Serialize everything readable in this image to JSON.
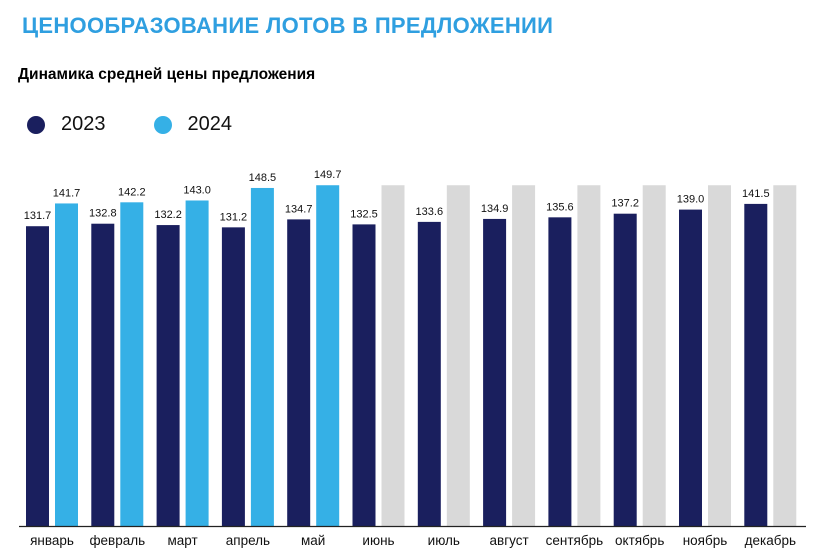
{
  "header": {
    "title": "ЦЕНООБРАЗОВАНИЕ ЛОТОВ В ПРЕДЛОЖЕНИИ"
  },
  "chart_data": {
    "type": "bar",
    "title": "Динамика средней цены предложения",
    "categories": [
      "январь",
      "февраль",
      "март",
      "апрель",
      "май",
      "июнь",
      "июль",
      "август",
      "сентябрь",
      "октябрь",
      "ноябрь",
      "декабрь"
    ],
    "series": [
      {
        "name": "2023",
        "color": "#1a1f5e",
        "values": [
          131.7,
          132.8,
          132.2,
          131.2,
          134.7,
          132.5,
          133.6,
          134.9,
          135.6,
          137.2,
          139.0,
          141.5
        ]
      },
      {
        "name": "2024",
        "color": "#35b0e6",
        "values": [
          141.7,
          142.2,
          143.0,
          148.5,
          149.7,
          null,
          null,
          null,
          null,
          null,
          null,
          null
        ]
      }
    ],
    "placeholder_color": "#d9d9d9",
    "placeholder_value": 149.7,
    "ylim": [
      0,
      152
    ],
    "grid": false,
    "legend": "top-left"
  }
}
